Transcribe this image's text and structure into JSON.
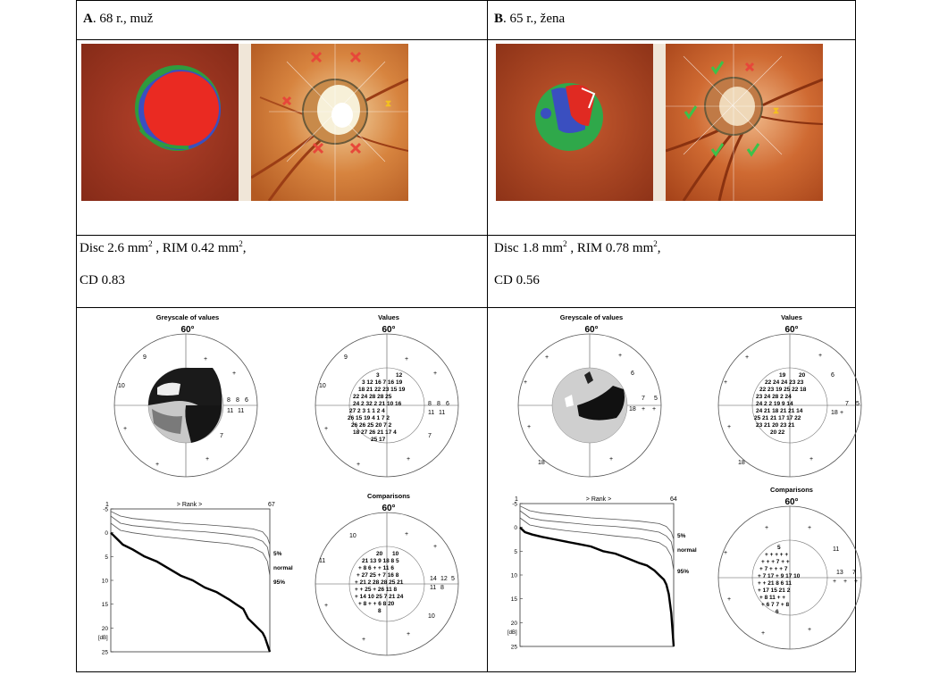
{
  "panel_a": {
    "letter": "A",
    "caption": ". 68 r., muž",
    "disc_label": "Disc 2.6 mm",
    "disc_sup": "2",
    "rim_label": " , RIM  0.42 mm",
    "rim_sup": "2",
    "rim_tail": ",",
    "cd_label": "CD 0.83",
    "greyscale_title": "Greyscale of values",
    "values_title": "Values",
    "comparisons_title": "Comparisons",
    "deg_label": "60°",
    "rank_label": "> Rank >",
    "rank_start": "1",
    "rank_end": "67",
    "legend_5": "5%",
    "legend_normal": "normal",
    "legend_95": "95%",
    "y_unit": "[dB]",
    "y_ticks": [
      "-5",
      "0",
      "5",
      "10",
      "15",
      "20",
      "25"
    ],
    "greyscale_nums": [
      "9",
      "10",
      "8",
      "8",
      "6",
      "11",
      "11",
      "7"
    ],
    "values_outer": [
      "9",
      "10",
      "8",
      "8",
      "6",
      "11",
      "11",
      "7"
    ],
    "comparisons_outer": [
      "10",
      "11",
      "14",
      "12",
      "5",
      "11",
      "8",
      "10"
    ]
  },
  "panel_b": {
    "letter": "B",
    "caption": ". 65 r., žena",
    "disc_label": "Disc 1.8 mm",
    "disc_sup": "2",
    "rim_label": " , RIM  0.78 mm",
    "rim_sup": "2",
    "rim_tail": ",",
    "cd_label": "CD 0.56",
    "greyscale_title": "Greyscale of values",
    "values_title": "Values",
    "comparisons_title": "Comparisons",
    "deg_label": "60°",
    "rank_label": "> Rank >",
    "rank_start": "1",
    "rank_end": "64",
    "legend_5": "5%",
    "legend_normal": "normal",
    "legend_95": "95%",
    "y_unit": "[dB]",
    "y_ticks": [
      "-5",
      "0",
      "5",
      "10",
      "15",
      "20",
      "25"
    ],
    "greyscale_nums": [
      "6",
      "7",
      "5",
      "18",
      "18"
    ],
    "values_outer": [
      "6",
      "7",
      "5",
      "18",
      "18"
    ],
    "comparisons_outer": [
      "11",
      "13",
      "7"
    ]
  },
  "chart_data": [
    {
      "type": "line",
      "title": "",
      "xlabel": "> Rank >",
      "ylabel": "[dB]",
      "xlim": [
        1,
        67
      ],
      "ylim": [
        -5,
        25
      ],
      "series": [
        {
          "name": "5%",
          "x": [
            1,
            5,
            10,
            20,
            30,
            40,
            50,
            60,
            64,
            66,
            67
          ],
          "y": [
            -4.5,
            -3.5,
            -3,
            -2.5,
            -2,
            -1.7,
            -1.3,
            -0.8,
            -0.2,
            1,
            2.5
          ]
        },
        {
          "name": "normal",
          "x": [
            1,
            5,
            10,
            20,
            30,
            40,
            50,
            60,
            64,
            66,
            67
          ],
          "y": [
            -3.5,
            -2,
            -1.5,
            -1,
            -0.5,
            -0.2,
            0.3,
            1,
            1.8,
            3,
            5.5
          ]
        },
        {
          "name": "95%",
          "x": [
            1,
            5,
            10,
            20,
            30,
            40,
            50,
            60,
            64,
            66,
            67
          ],
          "y": [
            -2,
            -0.5,
            0,
            0.7,
            1.2,
            1.8,
            2.3,
            3.2,
            4.2,
            6,
            9
          ]
        },
        {
          "x": [
            1,
            3,
            6,
            10,
            15,
            20,
            25,
            30,
            35,
            40,
            45,
            50,
            53,
            56,
            58,
            60,
            62,
            64,
            65,
            66,
            67
          ],
          "y": [
            0,
            1,
            2.5,
            3.5,
            5,
            6,
            7.5,
            9,
            10,
            11.5,
            12.5,
            14,
            15,
            16,
            18,
            19,
            20,
            21,
            22,
            23.5,
            25
          ]
        }
      ]
    },
    {
      "type": "line",
      "title": "",
      "xlabel": "> Rank >",
      "ylabel": "[dB]",
      "xlim": [
        1,
        64
      ],
      "ylim": [
        -5,
        25
      ],
      "series": [
        {
          "name": "5%",
          "x": [
            1,
            5,
            10,
            20,
            30,
            40,
            50,
            58,
            61,
            63,
            64
          ],
          "y": [
            -4.5,
            -3.5,
            -3,
            -2.5,
            -2,
            -1.7,
            -1.3,
            -0.8,
            -0.2,
            1,
            2.5
          ]
        },
        {
          "name": "normal",
          "x": [
            1,
            5,
            10,
            20,
            30,
            40,
            50,
            58,
            61,
            63,
            64
          ],
          "y": [
            -3.5,
            -2,
            -1.5,
            -1,
            -0.5,
            -0.2,
            0.3,
            1,
            1.8,
            3,
            5.5
          ]
        },
        {
          "name": "95%",
          "x": [
            1,
            5,
            10,
            20,
            30,
            40,
            50,
            58,
            61,
            63,
            64
          ],
          "y": [
            -2,
            -0.5,
            0,
            0.7,
            1.2,
            1.8,
            2.3,
            3.2,
            4.2,
            6,
            9
          ]
        },
        {
          "x": [
            1,
            3,
            6,
            10,
            15,
            20,
            25,
            30,
            35,
            40,
            45,
            50,
            53,
            56,
            58,
            60,
            61,
            62,
            63,
            64
          ],
          "y": [
            0,
            1,
            1.5,
            2,
            2.5,
            3,
            3.5,
            4,
            5,
            5.5,
            6.5,
            7.5,
            8,
            9,
            10,
            11,
            12,
            14,
            18,
            25
          ]
        }
      ]
    }
  ]
}
